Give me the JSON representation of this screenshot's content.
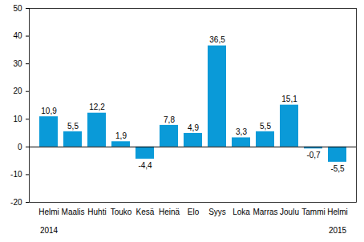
{
  "chart_data": {
    "type": "bar",
    "categories": [
      "Helmi",
      "Maalis",
      "Huhti",
      "Touko",
      "Kesä",
      "Heinä",
      "Elo",
      "Syys",
      "Loka",
      "Marras",
      "Joulu",
      "Tammi",
      "Helmi"
    ],
    "values": [
      10.9,
      5.5,
      12.2,
      1.9,
      -4.4,
      7.8,
      4.9,
      36.5,
      3.3,
      5.5,
      15.1,
      -0.7,
      -5.5
    ],
    "value_labels": [
      "10,9",
      "5,5",
      "12,2",
      "1,9",
      "-4,4",
      "7,8",
      "4,9",
      "36,5",
      "3,3",
      "5,5",
      "15,1",
      "-0,7",
      "-5,5"
    ],
    "annotations": [
      "2014",
      "2015"
    ],
    "color": "#0a9ad8",
    "ylim": [
      -20,
      50
    ],
    "yticks": [
      -20,
      -10,
      0,
      10,
      20,
      30,
      40,
      50
    ],
    "grid": false,
    "data_labels": true
  }
}
